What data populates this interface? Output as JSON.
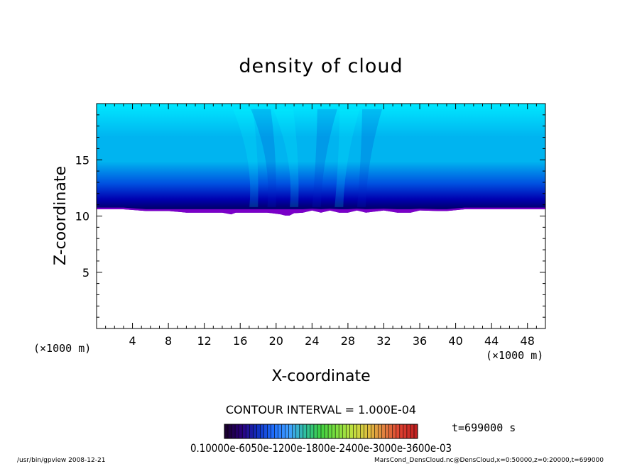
{
  "chart_data": {
    "type": "heatmap",
    "title": "density of cloud",
    "xlabel": "X-coordinate",
    "ylabel": "Z-coordinate",
    "x_unit": "(×1000 m)",
    "z_unit": "(×1000 m)",
    "xlim": [
      0,
      50
    ],
    "ylim": [
      0,
      20
    ],
    "xticks": [
      4,
      8,
      12,
      16,
      20,
      24,
      28,
      32,
      36,
      40,
      44,
      48
    ],
    "yticks": [
      5,
      10,
      15
    ],
    "grid": false,
    "cloud_base_profile": {
      "x": [
        0,
        3,
        5.5,
        8,
        10,
        12,
        14,
        15,
        15.5,
        17,
        19,
        20.5,
        21,
        21.5,
        22,
        23,
        24,
        25,
        26,
        27,
        28,
        29,
        30,
        32,
        33.5,
        35,
        36,
        38,
        39,
        41,
        50
      ],
      "z": [
        10.6,
        10.6,
        10.45,
        10.45,
        10.3,
        10.3,
        10.3,
        10.15,
        10.3,
        10.3,
        10.3,
        10.15,
        10.05,
        10.05,
        10.25,
        10.3,
        10.5,
        10.3,
        10.5,
        10.3,
        10.3,
        10.5,
        10.3,
        10.5,
        10.3,
        10.3,
        10.5,
        10.45,
        10.45,
        10.6,
        10.6
      ]
    },
    "colors": {
      "top": "#00e8ff",
      "upper": "#00b4f0",
      "middle": "#0050e0",
      "lower": "#0000b0",
      "dark": "#000070",
      "base": "#7a00c8"
    },
    "contour_interval": "CONTOUR INTERVAL = 1.000E-04",
    "colorbar_labels": "0.10000e-6050e-1200e-1800e-2400e-3000e-3600e-03",
    "colorbar_colors": [
      "#1a0030",
      "#2a0080",
      "#1030c0",
      "#2070ff",
      "#40a0ff",
      "#30c0a0",
      "#40d040",
      "#80e040",
      "#c0e040",
      "#e0c040",
      "#e08040",
      "#e04030",
      "#c02020"
    ],
    "time_label": "t=699000 s"
  },
  "footer": {
    "left": "/usr/bin/gpview   2008-12-21",
    "right": "MarsCond_DensCloud.nc@DensCloud,x=0:50000,z=0:20000,t=699000"
  }
}
